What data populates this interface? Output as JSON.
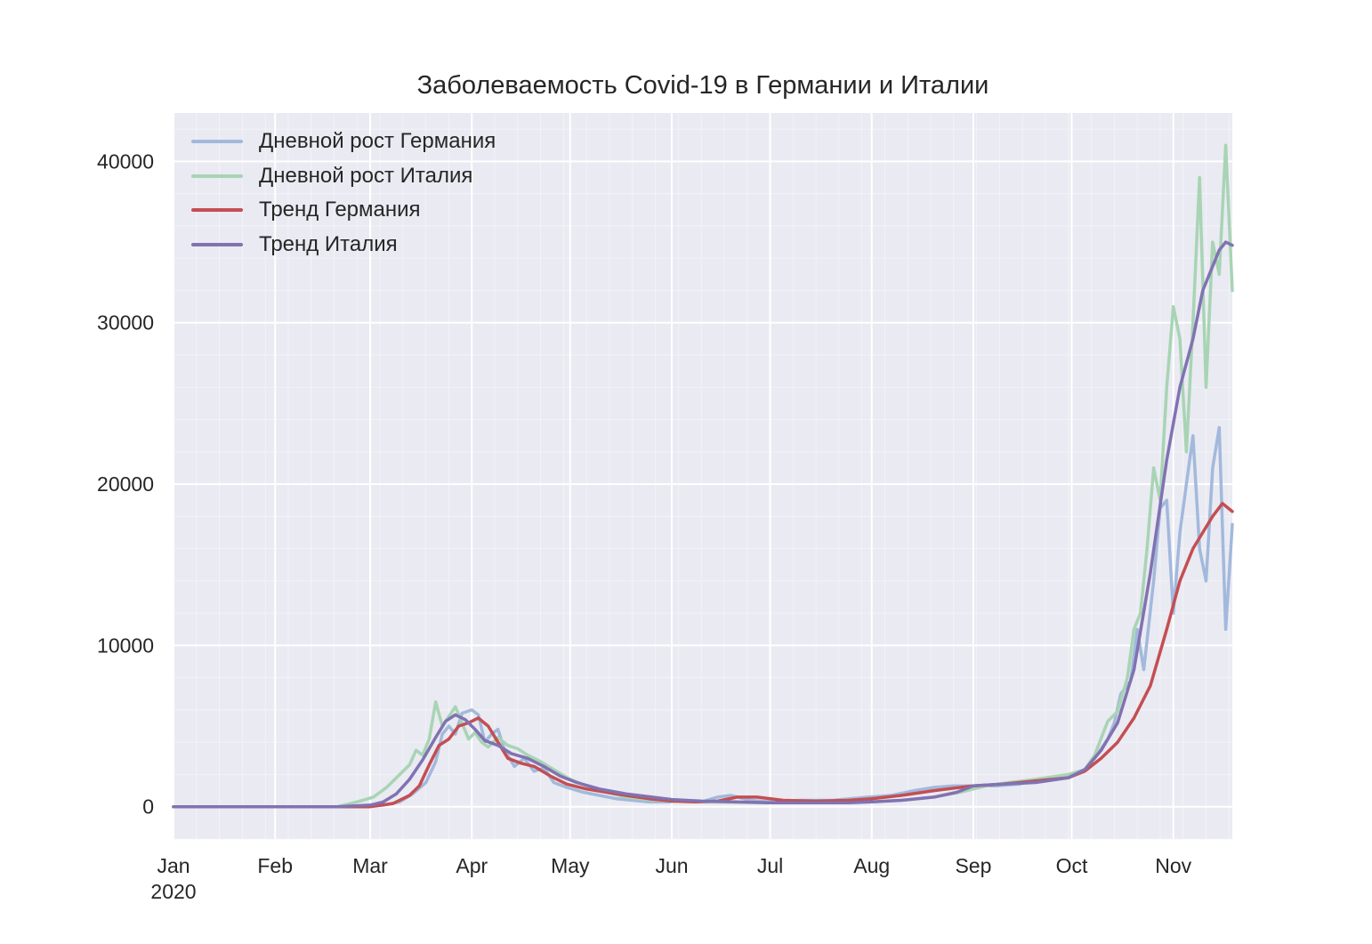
{
  "chart_data": {
    "type": "line",
    "title": "Заболеваемость Covid-19 в Германии и Италии",
    "xlabel": "",
    "ylabel": "",
    "x_axis": {
      "kind": "date",
      "min": "2020-01-01",
      "max": "2020-11-19",
      "ticks": [
        {
          "date": "2020-01-01",
          "label": "Jan",
          "sublabel": "2020"
        },
        {
          "date": "2020-02-01",
          "label": "Feb"
        },
        {
          "date": "2020-03-01",
          "label": "Mar"
        },
        {
          "date": "2020-04-01",
          "label": "Apr"
        },
        {
          "date": "2020-05-01",
          "label": "May"
        },
        {
          "date": "2020-06-01",
          "label": "Jun"
        },
        {
          "date": "2020-07-01",
          "label": "Jul"
        },
        {
          "date": "2020-08-01",
          "label": "Aug"
        },
        {
          "date": "2020-09-01",
          "label": "Sep"
        },
        {
          "date": "2020-10-01",
          "label": "Oct"
        },
        {
          "date": "2020-11-01",
          "label": "Nov"
        }
      ]
    },
    "ylim": [
      -2000,
      43000
    ],
    "y_ticks": [
      0,
      10000,
      20000,
      30000,
      40000
    ],
    "y_tick_labels": [
      "0",
      "10000",
      "20000",
      "30000",
      "40000"
    ],
    "grid": true,
    "legend_position": "upper-left",
    "series": [
      {
        "name": "Дневной рост Германия",
        "color": "#a2b9dc",
        "x": [
          "2020-01-01",
          "2020-02-15",
          "2020-02-28",
          "2020-03-05",
          "2020-03-10",
          "2020-03-14",
          "2020-03-18",
          "2020-03-21",
          "2020-03-23",
          "2020-03-25",
          "2020-03-27",
          "2020-03-29",
          "2020-04-01",
          "2020-04-03",
          "2020-04-05",
          "2020-04-07",
          "2020-04-09",
          "2020-04-11",
          "2020-04-14",
          "2020-04-17",
          "2020-04-20",
          "2020-04-23",
          "2020-04-26",
          "2020-04-30",
          "2020-05-05",
          "2020-05-10",
          "2020-05-15",
          "2020-05-20",
          "2020-05-25",
          "2020-05-31",
          "2020-06-05",
          "2020-06-10",
          "2020-06-15",
          "2020-06-19",
          "2020-06-25",
          "2020-07-01",
          "2020-07-10",
          "2020-07-20",
          "2020-07-31",
          "2020-08-07",
          "2020-08-14",
          "2020-08-20",
          "2020-08-26",
          "2020-09-01",
          "2020-09-08",
          "2020-09-15",
          "2020-09-22",
          "2020-09-30",
          "2020-10-05",
          "2020-10-08",
          "2020-10-12",
          "2020-10-14",
          "2020-10-16",
          "2020-10-19",
          "2020-10-21",
          "2020-10-23",
          "2020-10-26",
          "2020-10-28",
          "2020-10-30",
          "2020-11-01",
          "2020-11-03",
          "2020-11-05",
          "2020-11-07",
          "2020-11-09",
          "2020-11-11",
          "2020-11-13",
          "2020-11-15",
          "2020-11-17",
          "2020-11-19"
        ],
        "values": [
          0,
          0,
          0,
          100,
          300,
          800,
          1500,
          2800,
          4500,
          5000,
          4500,
          5800,
          6000,
          5700,
          4000,
          4500,
          4800,
          3500,
          2500,
          3000,
          2200,
          2400,
          1500,
          1200,
          900,
          700,
          500,
          400,
          300,
          300,
          400,
          300,
          600,
          700,
          400,
          300,
          400,
          400,
          600,
          700,
          1000,
          1200,
          1300,
          1300,
          1300,
          1400,
          1700,
          2000,
          2300,
          3000,
          4200,
          5200,
          7000,
          7800,
          11000,
          8500,
          14000,
          18500,
          19000,
          12000,
          17000,
          20000,
          23000,
          16000,
          14000,
          21000,
          23500,
          11000,
          17500
        ]
      },
      {
        "name": "Дневной рост Италия",
        "color": "#a8d4b4",
        "x": [
          "2020-01-01",
          "2020-02-20",
          "2020-02-26",
          "2020-03-02",
          "2020-03-06",
          "2020-03-10",
          "2020-03-13",
          "2020-03-15",
          "2020-03-17",
          "2020-03-19",
          "2020-03-21",
          "2020-03-23",
          "2020-03-25",
          "2020-03-27",
          "2020-03-29",
          "2020-03-31",
          "2020-04-02",
          "2020-04-04",
          "2020-04-06",
          "2020-04-09",
          "2020-04-12",
          "2020-04-15",
          "2020-04-18",
          "2020-04-22",
          "2020-04-26",
          "2020-05-01",
          "2020-05-06",
          "2020-05-12",
          "2020-05-18",
          "2020-05-25",
          "2020-06-01",
          "2020-06-10",
          "2020-06-20",
          "2020-07-01",
          "2020-07-15",
          "2020-08-01",
          "2020-08-10",
          "2020-08-20",
          "2020-08-28",
          "2020-09-05",
          "2020-09-12",
          "2020-09-20",
          "2020-09-30",
          "2020-10-05",
          "2020-10-08",
          "2020-10-12",
          "2020-10-15",
          "2020-10-18",
          "2020-10-20",
          "2020-10-22",
          "2020-10-24",
          "2020-10-26",
          "2020-10-28",
          "2020-10-30",
          "2020-11-01",
          "2020-11-03",
          "2020-11-05",
          "2020-11-07",
          "2020-11-09",
          "2020-11-11",
          "2020-11-13",
          "2020-11-15",
          "2020-11-17",
          "2020-11-19"
        ],
        "values": [
          0,
          0,
          300,
          600,
          1200,
          2000,
          2600,
          3500,
          3200,
          4200,
          6500,
          5000,
          5600,
          6200,
          5200,
          4200,
          4600,
          4000,
          3700,
          4300,
          3800,
          3600,
          3200,
          2800,
          2300,
          1700,
          1300,
          900,
          600,
          450,
          350,
          300,
          280,
          250,
          250,
          300,
          400,
          600,
          900,
          1300,
          1500,
          1700,
          2000,
          2300,
          3200,
          5300,
          5900,
          8000,
          11000,
          12000,
          16000,
          21000,
          19000,
          26000,
          31000,
          29000,
          22000,
          30000,
          39000,
          26000,
          35000,
          33000,
          41000,
          32000
        ]
      },
      {
        "name": "Тренд Германия",
        "color": "#c44e52",
        "x": [
          "2020-01-01",
          "2020-02-20",
          "2020-03-01",
          "2020-03-08",
          "2020-03-13",
          "2020-03-16",
          "2020-03-19",
          "2020-03-22",
          "2020-03-25",
          "2020-03-28",
          "2020-03-31",
          "2020-04-03",
          "2020-04-06",
          "2020-04-09",
          "2020-04-12",
          "2020-04-16",
          "2020-04-20",
          "2020-04-25",
          "2020-04-30",
          "2020-05-06",
          "2020-05-12",
          "2020-05-18",
          "2020-05-25",
          "2020-06-01",
          "2020-06-08",
          "2020-06-15",
          "2020-06-21",
          "2020-06-27",
          "2020-07-05",
          "2020-07-15",
          "2020-07-25",
          "2020-08-01",
          "2020-08-10",
          "2020-08-20",
          "2020-09-01",
          "2020-09-10",
          "2020-09-20",
          "2020-09-30",
          "2020-10-05",
          "2020-10-10",
          "2020-10-15",
          "2020-10-20",
          "2020-10-25",
          "2020-10-30",
          "2020-11-03",
          "2020-11-07",
          "2020-11-10",
          "2020-11-13",
          "2020-11-16",
          "2020-11-19"
        ],
        "values": [
          0,
          0,
          0,
          200,
          700,
          1300,
          2600,
          3800,
          4200,
          5000,
          5200,
          5500,
          5000,
          4000,
          3000,
          2700,
          2500,
          1900,
          1400,
          1100,
          900,
          700,
          500,
          350,
          300,
          350,
          600,
          600,
          400,
          350,
          400,
          500,
          700,
          1000,
          1300,
          1400,
          1600,
          1800,
          2200,
          3000,
          4000,
          5500,
          7500,
          11000,
          14000,
          16000,
          17000,
          18000,
          18800,
          18300
        ]
      },
      {
        "name": "Тренд Италия",
        "color": "#8172b2",
        "x": [
          "2020-01-01",
          "2020-02-20",
          "2020-03-01",
          "2020-03-05",
          "2020-03-09",
          "2020-03-13",
          "2020-03-17",
          "2020-03-21",
          "2020-03-24",
          "2020-03-27",
          "2020-03-30",
          "2020-04-02",
          "2020-04-05",
          "2020-04-09",
          "2020-04-13",
          "2020-04-18",
          "2020-04-23",
          "2020-04-28",
          "2020-05-03",
          "2020-05-10",
          "2020-05-18",
          "2020-05-26",
          "2020-06-01",
          "2020-06-10",
          "2020-06-20",
          "2020-07-01",
          "2020-07-15",
          "2020-07-25",
          "2020-08-01",
          "2020-08-10",
          "2020-08-20",
          "2020-08-27",
          "2020-09-01",
          "2020-09-10",
          "2020-09-20",
          "2020-09-30",
          "2020-10-05",
          "2020-10-10",
          "2020-10-15",
          "2020-10-20",
          "2020-10-25",
          "2020-10-30",
          "2020-11-03",
          "2020-11-07",
          "2020-11-10",
          "2020-11-13",
          "2020-11-15",
          "2020-11-17",
          "2020-11-19"
        ],
        "values": [
          0,
          0,
          100,
          300,
          800,
          1700,
          2900,
          4300,
          5300,
          5700,
          5400,
          4800,
          4100,
          3800,
          3300,
          3000,
          2500,
          1900,
          1500,
          1100,
          800,
          600,
          450,
          350,
          300,
          250,
          250,
          250,
          300,
          400,
          600,
          900,
          1300,
          1400,
          1500,
          1800,
          2300,
          3500,
          5200,
          8500,
          14500,
          21500,
          26000,
          29000,
          32000,
          33500,
          34500,
          35000,
          34800
        ]
      }
    ]
  }
}
